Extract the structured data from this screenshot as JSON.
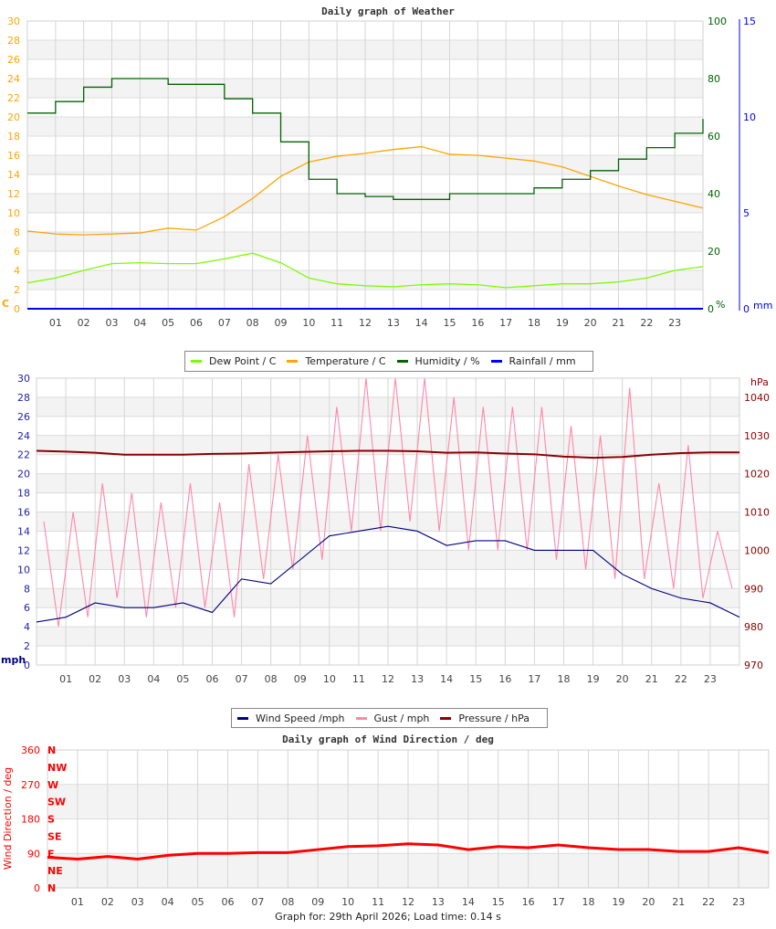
{
  "colors": {
    "temperature": "#ffa500",
    "dew_point": "#7cfc00",
    "humidity": "#006400",
    "rainfall": "#0000ff",
    "wind_speed": "#000080",
    "gust": "#ff88aa",
    "pressure": "#8b0000",
    "wind_direction": "#ff0000",
    "mph_axis": "#1f1fa8"
  },
  "footer": "Graph for: 29th April 2026; Load time: 0.14 s",
  "chart_data": [
    {
      "type": "line",
      "title": "Daily graph of Weather",
      "x_ticks": [
        "01",
        "02",
        "03",
        "04",
        "05",
        "06",
        "07",
        "08",
        "09",
        "10",
        "11",
        "12",
        "13",
        "14",
        "15",
        "16",
        "17",
        "18",
        "19",
        "20",
        "21",
        "22",
        "23"
      ],
      "xlim": [
        0,
        24
      ],
      "grid": true,
      "axes": {
        "left": {
          "unit": "C",
          "ylim": [
            0,
            30
          ],
          "ticks": [
            0,
            2,
            4,
            6,
            8,
            10,
            12,
            14,
            16,
            18,
            20,
            22,
            24,
            26,
            28,
            30
          ]
        },
        "right": {
          "unit": "%",
          "ylim": [
            0,
            100
          ],
          "ticks": [
            0,
            20,
            40,
            60,
            80,
            100
          ]
        },
        "right2": {
          "unit": "mm",
          "ylim": [
            0,
            15
          ],
          "ticks": [
            0,
            5,
            10,
            15
          ]
        }
      },
      "legend_placement": "bottom",
      "x": [
        0,
        1,
        2,
        3,
        4,
        5,
        6,
        7,
        8,
        9,
        10,
        11,
        12,
        13,
        14,
        15,
        16,
        17,
        18,
        19,
        20,
        21,
        22,
        23,
        24
      ],
      "series": [
        {
          "name": "Dew Point / C",
          "axis": "left",
          "color_key": "dew_point",
          "values": [
            2.7,
            3.2,
            4.0,
            4.7,
            4.8,
            4.7,
            4.7,
            5.2,
            5.8,
            4.8,
            3.2,
            2.6,
            2.4,
            2.3,
            2.5,
            2.6,
            2.5,
            2.2,
            2.4,
            2.6,
            2.6,
            2.8,
            3.2,
            4.0,
            4.4
          ]
        },
        {
          "name": "Temperature / C",
          "axis": "left",
          "color_key": "temperature",
          "values": [
            8.1,
            7.8,
            7.7,
            7.8,
            7.9,
            8.4,
            8.2,
            9.6,
            11.5,
            13.8,
            15.3,
            15.9,
            16.2,
            16.6,
            16.9,
            16.1,
            16.0,
            15.7,
            15.4,
            14.8,
            13.8,
            12.8,
            11.9,
            11.2,
            10.5
          ]
        },
        {
          "name": "Humidity / %",
          "axis": "right",
          "color_key": "humidity",
          "values": [
            68,
            72,
            77,
            80,
            80,
            78,
            78,
            73,
            68,
            58,
            45,
            40,
            39,
            38,
            38,
            40,
            40,
            40,
            42,
            45,
            48,
            52,
            56,
            61,
            66
          ]
        },
        {
          "name": "Rainfall / mm",
          "axis": "right2",
          "color_key": "rainfall",
          "values": [
            0,
            0,
            0,
            0,
            0,
            0,
            0,
            0,
            0,
            0,
            0,
            0,
            0,
            0,
            0,
            0,
            0,
            0,
            0,
            0,
            0,
            0,
            0,
            0,
            0
          ]
        }
      ]
    },
    {
      "type": "line",
      "title": "",
      "x_ticks": [
        "01",
        "02",
        "03",
        "04",
        "05",
        "06",
        "07",
        "08",
        "09",
        "10",
        "11",
        "12",
        "13",
        "14",
        "15",
        "16",
        "17",
        "18",
        "19",
        "20",
        "21",
        "22",
        "23"
      ],
      "xlim": [
        0,
        24
      ],
      "grid": true,
      "axes": {
        "left": {
          "unit": "mph",
          "ylim": [
            0,
            30
          ],
          "ticks": [
            0,
            2,
            4,
            6,
            8,
            10,
            12,
            14,
            16,
            18,
            20,
            22,
            24,
            26,
            28,
            30
          ]
        },
        "right": {
          "unit": "hPa",
          "ylim": [
            970,
            1045
          ],
          "ticks": [
            970,
            980,
            990,
            1000,
            1010,
            1020,
            1030,
            1040
          ]
        }
      },
      "legend_placement": "bottom",
      "series": [
        {
          "name": "Wind Speed /mph",
          "axis": "left",
          "color_key": "wind_speed",
          "x": [
            0,
            1,
            2,
            3,
            4,
            5,
            6,
            7,
            8,
            9,
            10,
            11,
            12,
            13,
            14,
            15,
            16,
            17,
            18,
            19,
            20,
            21,
            22,
            23,
            24
          ],
          "values": [
            4.5,
            5,
            6.5,
            6,
            6,
            6.5,
            5.5,
            9,
            8.5,
            11,
            13.5,
            14,
            14.5,
            14,
            12.5,
            13,
            13,
            12,
            12,
            12,
            9.5,
            8,
            7,
            6.5,
            5
          ]
        },
        {
          "name": "Gust / mph",
          "axis": "left",
          "color_key": "gust",
          "x": [
            0.25,
            0.75,
            1.25,
            1.75,
            2.25,
            2.75,
            3.25,
            3.75,
            4.25,
            4.75,
            5.25,
            5.75,
            6.25,
            6.75,
            7.25,
            7.75,
            8.25,
            8.75,
            9.25,
            9.75,
            10.25,
            10.75,
            11.25,
            11.75,
            12.25,
            12.75,
            13.25,
            13.75,
            14.25,
            14.75,
            15.25,
            15.75,
            16.25,
            16.75,
            17.25,
            17.75,
            18.25,
            18.75,
            19.25,
            19.75,
            20.25,
            20.75,
            21.25,
            21.75,
            22.25,
            22.75,
            23.25,
            23.75
          ],
          "values": [
            15,
            4,
            16,
            5,
            19,
            7,
            18,
            5,
            17,
            6,
            19,
            6,
            17,
            5,
            21,
            9,
            22,
            10,
            24,
            11,
            27,
            14,
            30,
            14,
            30,
            15,
            30,
            14,
            28,
            12,
            27,
            12,
            27,
            12,
            27,
            11,
            25,
            10,
            24,
            9,
            29,
            9,
            19,
            8,
            23,
            7,
            14,
            8
          ]
        },
        {
          "name": "Pressure / hPa",
          "axis": "right",
          "color_key": "pressure",
          "x": [
            0,
            1,
            2,
            3,
            4,
            5,
            6,
            7,
            8,
            9,
            10,
            11,
            12,
            13,
            14,
            15,
            16,
            17,
            18,
            19,
            20,
            21,
            22,
            23,
            24
          ],
          "values": [
            1026,
            1025.8,
            1025.5,
            1025,
            1025,
            1025,
            1025.2,
            1025.3,
            1025.5,
            1025.7,
            1025.9,
            1026,
            1026,
            1025.9,
            1025.5,
            1025.6,
            1025.3,
            1025.1,
            1024.5,
            1024.2,
            1024.4,
            1025,
            1025.4,
            1025.6,
            1025.6
          ]
        }
      ]
    },
    {
      "type": "scatter",
      "title": "Daily graph of Wind Direction / deg",
      "ylabel": "Wind Direction / deg",
      "x_ticks": [
        "01",
        "02",
        "03",
        "04",
        "05",
        "06",
        "07",
        "08",
        "09",
        "10",
        "11",
        "12",
        "13",
        "14",
        "15",
        "16",
        "17",
        "18",
        "19",
        "20",
        "21",
        "22",
        "23"
      ],
      "xlim": [
        0,
        24
      ],
      "ylim": [
        0,
        360
      ],
      "y_ticks": [
        0,
        90,
        180,
        270,
        360
      ],
      "compass_labels": [
        "N",
        "NE",
        "E",
        "SE",
        "S",
        "SW",
        "W",
        "NW",
        "N"
      ],
      "grid": true,
      "x": [
        0,
        1,
        2,
        3,
        4,
        5,
        6,
        7,
        8,
        9,
        10,
        11,
        12,
        13,
        14,
        15,
        16,
        17,
        18,
        19,
        20,
        21,
        22,
        23,
        24
      ],
      "series": [
        {
          "color_key": "wind_direction",
          "values": [
            80,
            75,
            82,
            75,
            85,
            90,
            90,
            92,
            92,
            100,
            108,
            110,
            115,
            112,
            100,
            108,
            105,
            112,
            105,
            100,
            100,
            95,
            95,
            105,
            92
          ]
        }
      ]
    }
  ]
}
